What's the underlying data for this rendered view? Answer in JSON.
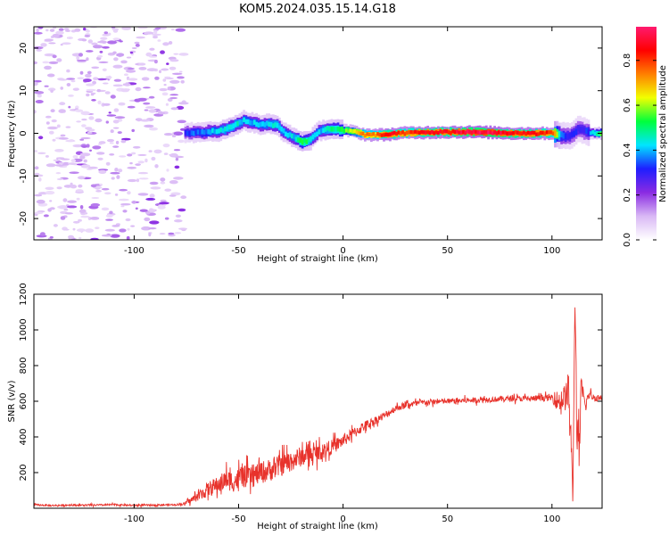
{
  "title": "KOM5.2024.035.15.14.G18",
  "chart_data": [
    {
      "type": "heatmap",
      "xlabel": "Height of straight line (km)",
      "ylabel": "Frequency (Hz)",
      "xlim": [
        -148,
        124
      ],
      "ylim": [
        -25,
        25
      ],
      "xticks": [
        -100,
        -50,
        0,
        50,
        100
      ],
      "xtick_labels": [
        "-100",
        "-50",
        "0",
        "50",
        "100"
      ],
      "yticks": [
        -20,
        -10,
        0,
        10,
        20
      ],
      "ytick_labels": [
        "-20",
        "-10",
        "0",
        "10",
        "20"
      ],
      "colorbar": {
        "label": "Normalized spectral amplitude",
        "range": [
          0,
          0.95
        ],
        "ticks": [
          0,
          0.2,
          0.4,
          0.6,
          0.8
        ],
        "tick_labels": [
          "0.0",
          "0.2",
          "0.4",
          "0.6",
          "0.8"
        ],
        "colormap": [
          "#ffffff",
          "#d9b8f5",
          "#8a2be2",
          "#1e1eff",
          "#00e5ff",
          "#00ff3c",
          "#f2ff00",
          "#ff7f00",
          "#ff0000",
          "#ff1a6e"
        ]
      },
      "noise_region_x": [
        -148,
        -76
      ],
      "ridge": {
        "x": [
          -76,
          -72,
          -68,
          -64,
          -60,
          -56,
          -52,
          -48,
          -44,
          -40,
          -36,
          -32,
          -28,
          -24,
          -20,
          -16,
          -12,
          -8,
          -4,
          0,
          5,
          10,
          15,
          20,
          30,
          40,
          50,
          60,
          70,
          80,
          90,
          100,
          104,
          108,
          112,
          116,
          120,
          124
        ],
        "y": [
          0.2,
          0.2,
          0.1,
          0.5,
          0.5,
          1.0,
          2.0,
          3.0,
          2.5,
          2.0,
          2.2,
          1.8,
          0.0,
          -1.0,
          -2.0,
          -1.5,
          0.5,
          1.0,
          1.0,
          0.7,
          0.4,
          -0.3,
          -0.4,
          -0.3,
          0.1,
          0.2,
          0.3,
          0.3,
          0.2,
          0.0,
          0.0,
          0.0,
          -0.5,
          -0.8,
          1.0,
          0.4,
          0.0,
          0.0
        ],
        "amplitude": [
          0.3,
          0.35,
          0.35,
          0.4,
          0.4,
          0.45,
          0.45,
          0.4,
          0.4,
          0.4,
          0.42,
          0.45,
          0.4,
          0.42,
          0.55,
          0.45,
          0.4,
          0.45,
          0.5,
          0.55,
          0.65,
          0.75,
          0.75,
          0.85,
          0.8,
          0.85,
          0.85,
          0.9,
          0.92,
          0.85,
          0.85,
          0.8,
          0.35,
          0.3,
          0.3,
          0.3,
          0.45,
          0.6
        ]
      }
    },
    {
      "type": "line",
      "xlabel": "Height of straight line (km)",
      "ylabel": "SNR (v/v)",
      "xlim": [
        -148,
        124
      ],
      "ylim": [
        0,
        1200
      ],
      "xticks": [
        -100,
        -50,
        0,
        50,
        100
      ],
      "xtick_labels": [
        "-100",
        "-50",
        "0",
        "50",
        "100"
      ],
      "yticks": [
        200,
        400,
        600,
        800,
        1000,
        1200
      ],
      "ytick_labels": [
        "200",
        "400",
        "600",
        "800",
        "1000",
        "1200"
      ],
      "series": [
        {
          "color": "#e8322b",
          "x": [
            -148,
            -140,
            -130,
            -120,
            -110,
            -100,
            -90,
            -80,
            -76,
            -72,
            -68,
            -64,
            -60,
            -56,
            -52,
            -48,
            -44,
            -40,
            -36,
            -32,
            -28,
            -24,
            -20,
            -16,
            -12,
            -8,
            -4,
            0,
            5,
            10,
            15,
            20,
            25,
            30,
            40,
            50,
            60,
            70,
            80,
            90,
            100,
            103,
            106,
            108,
            109,
            110,
            111,
            112,
            113,
            114,
            116,
            118,
            120,
            124
          ],
          "values": [
            20,
            15,
            18,
            17,
            20,
            16,
            18,
            20,
            25,
            50,
            80,
            110,
            130,
            160,
            150,
            180,
            170,
            200,
            210,
            230,
            250,
            270,
            290,
            300,
            310,
            330,
            350,
            380,
            420,
            460,
            490,
            520,
            560,
            580,
            595,
            600,
            605,
            610,
            615,
            615,
            620,
            600,
            620,
            650,
            380,
            50,
            1200,
            420,
            300,
            660,
            580,
            640,
            620,
            620
          ],
          "noise_amplitude": [
            6,
            6,
            6,
            6,
            6,
            6,
            6,
            6,
            10,
            25,
            40,
            55,
            60,
            70,
            75,
            80,
            75,
            80,
            80,
            80,
            75,
            75,
            70,
            65,
            60,
            55,
            50,
            45,
            40,
            35,
            30,
            28,
            25,
            22,
            20,
            20,
            20,
            20,
            20,
            20,
            25,
            80,
            90,
            150,
            200,
            60,
            80,
            200,
            150,
            100,
            50,
            30,
            25,
            25
          ]
        }
      ]
    }
  ]
}
